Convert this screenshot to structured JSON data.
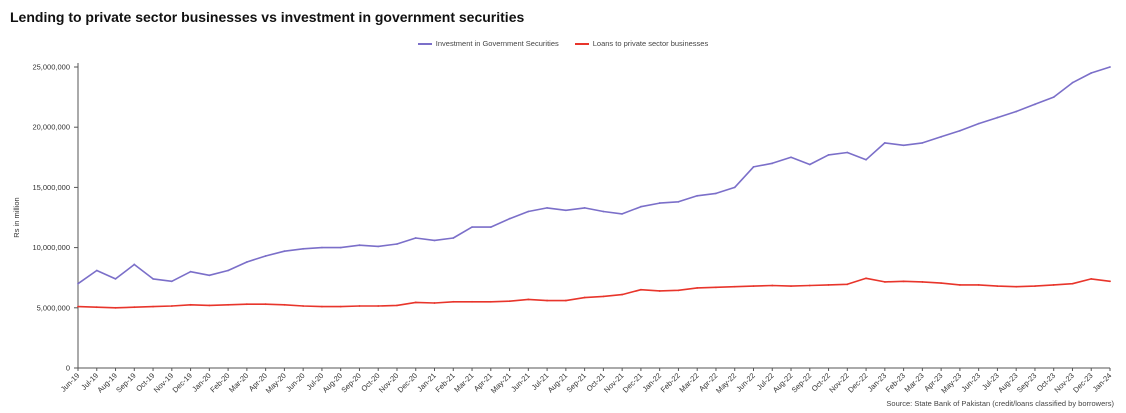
{
  "page": {
    "source": "Source: State Bank of Pakistan (credit/loans classified by borrowers)"
  },
  "chart_data": {
    "type": "line",
    "title": "Lending to private sector businesses vs investment in government securities",
    "xlabel": "",
    "ylabel": "Rs in million",
    "ylim": [
      0,
      25000000
    ],
    "yticks": [
      0,
      5000000,
      10000000,
      15000000,
      20000000,
      25000000
    ],
    "ytick_labels": [
      "0",
      "5,000,000",
      "10,000,000",
      "15,000,000",
      "20,000,000",
      "25,000,000"
    ],
    "grid": false,
    "legend_position": "top-center",
    "categories": [
      "Jun-19",
      "Jul-19",
      "Aug-19",
      "Sep-19",
      "Oct-19",
      "Nov-19",
      "Dec-19",
      "Jan-20",
      "Feb-20",
      "Mar-20",
      "Apr-20",
      "May-20",
      "Jun-20",
      "Jul-20",
      "Aug-20",
      "Sep-20",
      "Oct-20",
      "Nov-20",
      "Dec-20",
      "Jan-21",
      "Feb-21",
      "Mar-21",
      "Apr-21",
      "May-21",
      "Jun-21",
      "Jul-21",
      "Aug-21",
      "Sep-21",
      "Oct-21",
      "Nov-21",
      "Dec-21",
      "Jan-22",
      "Feb-22",
      "Mar-22",
      "Apr-22",
      "May-22",
      "Jun-22",
      "Jul-22",
      "Aug-22",
      "Sep-22",
      "Oct-22",
      "Nov-22",
      "Dec-22",
      "Jan-23",
      "Feb-23",
      "Mar-23",
      "Apr-23",
      "May-23",
      "Jun-23",
      "Jul-23",
      "Aug-23",
      "Sep-23",
      "Oct-23",
      "Nov-23",
      "Dec-23",
      "Jan-24"
    ],
    "series": [
      {
        "name": "Investment in Government Securities",
        "color": "#7b6fc9",
        "values": [
          7000000,
          8100000,
          7400000,
          8600000,
          7400000,
          7200000,
          8000000,
          7700000,
          8100000,
          8800000,
          9300000,
          9700000,
          9900000,
          10000000,
          10000000,
          10200000,
          10100000,
          10300000,
          10800000,
          10600000,
          10800000,
          11700000,
          11700000,
          12400000,
          13000000,
          13300000,
          13100000,
          13300000,
          13000000,
          12800000,
          13400000,
          13700000,
          13800000,
          14300000,
          14500000,
          15000000,
          16700000,
          17000000,
          17500000,
          16900000,
          17700000,
          17900000,
          17300000,
          18700000,
          18500000,
          18700000,
          19200000,
          19700000,
          20300000,
          20800000,
          21300000,
          21900000,
          22500000,
          23700000,
          24500000,
          25000000
        ]
      },
      {
        "name": "Loans to private sector businesses",
        "color": "#e8352b",
        "values": [
          5100000,
          5050000,
          5000000,
          5050000,
          5100000,
          5150000,
          5250000,
          5200000,
          5250000,
          5300000,
          5300000,
          5250000,
          5150000,
          5100000,
          5100000,
          5150000,
          5150000,
          5200000,
          5450000,
          5400000,
          5500000,
          5500000,
          5500000,
          5550000,
          5700000,
          5600000,
          5600000,
          5850000,
          5950000,
          6100000,
          6500000,
          6400000,
          6450000,
          6650000,
          6700000,
          6750000,
          6800000,
          6850000,
          6800000,
          6850000,
          6900000,
          6950000,
          7450000,
          7150000,
          7200000,
          7150000,
          7050000,
          6900000,
          6900000,
          6800000,
          6750000,
          6800000,
          6900000,
          7000000,
          7400000,
          7200000
        ]
      }
    ]
  }
}
